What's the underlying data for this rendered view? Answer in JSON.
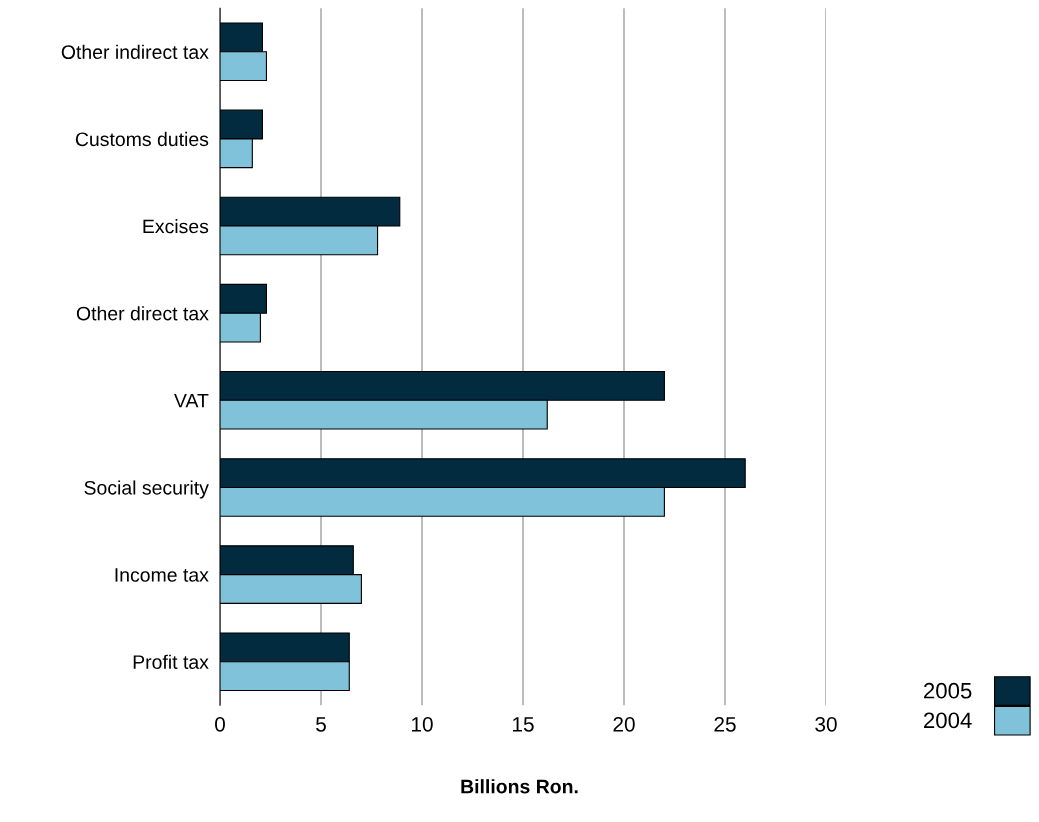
{
  "chart_data": {
    "type": "bar",
    "orientation": "horizontal",
    "xlabel": "Billions Ron.",
    "categories": [
      "Other indirect tax",
      "Customs duties",
      "Excises",
      "Other direct tax",
      "VAT",
      "Social security",
      "Income tax",
      "Profit tax"
    ],
    "series": [
      {
        "name": "2005",
        "color": "#022b3f",
        "values": [
          2.1,
          2.1,
          8.9,
          2.3,
          22.0,
          26.0,
          6.6,
          6.4
        ]
      },
      {
        "name": "2004",
        "color": "#7fc2d9",
        "values": [
          2.3,
          1.6,
          7.8,
          2.0,
          16.2,
          22.0,
          7.0,
          6.4
        ]
      }
    ],
    "xlim": [
      0,
      30
    ],
    "xticks": [
      0,
      5,
      10,
      15,
      20,
      25,
      30
    ],
    "grid": "x",
    "legend": "bottom right"
  }
}
